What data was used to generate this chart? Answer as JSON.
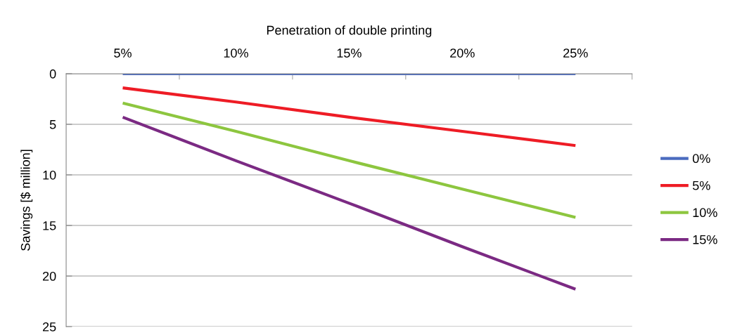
{
  "chart_data": {
    "type": "line",
    "xlabel": "Penetration of double printing",
    "ylabel": "Savings [$ million]",
    "categories": [
      "5%",
      "10%",
      "15%",
      "20%",
      "25%"
    ],
    "series": [
      {
        "name": "0%",
        "color": "#4a6bbf",
        "values": [
          0,
          0,
          0,
          0,
          0
        ]
      },
      {
        "name": "5%",
        "color": "#ee1c25",
        "values": [
          1.4,
          2.8,
          4.3,
          5.7,
          7.1
        ]
      },
      {
        "name": "10%",
        "color": "#8dc63f",
        "values": [
          2.9,
          5.7,
          8.6,
          11.4,
          14.2
        ]
      },
      {
        "name": "15%",
        "color": "#7b2a83",
        "values": [
          4.3,
          8.6,
          12.8,
          17.1,
          21.3
        ]
      }
    ],
    "ylim": [
      25,
      0
    ],
    "yticks": [
      0,
      5,
      10,
      15,
      20,
      25
    ],
    "grid": "y",
    "legend": "right",
    "marker": "none",
    "line_style": "solid"
  }
}
